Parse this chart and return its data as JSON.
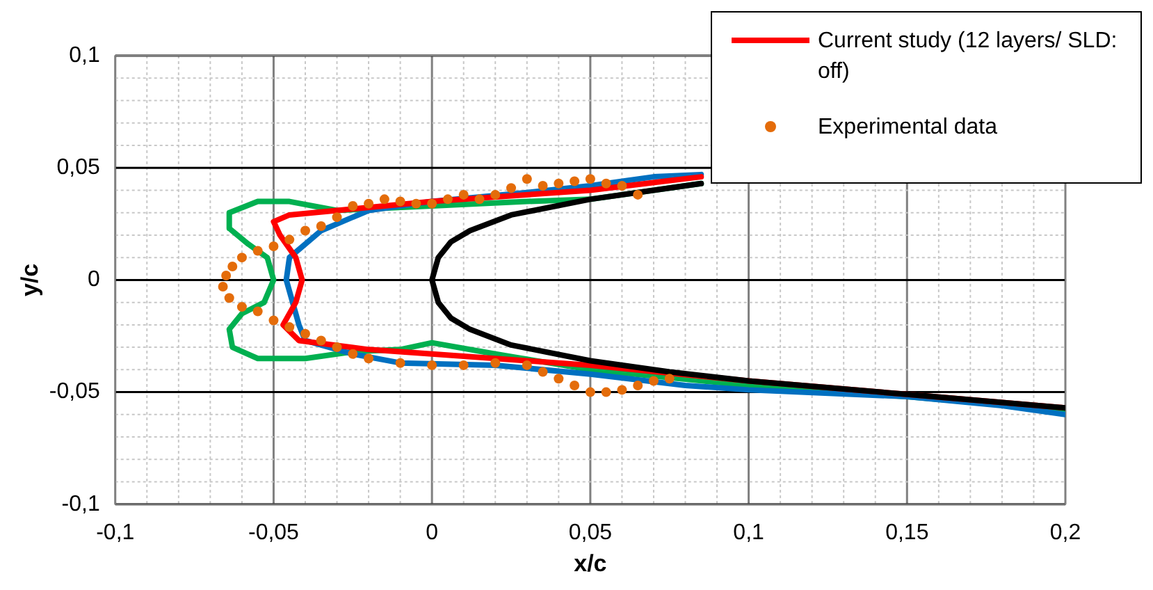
{
  "chart_data": {
    "type": "line",
    "xlabel": "x/c",
    "ylabel": "y/c",
    "legend": "top right",
    "grid": true,
    "xlim": [
      -0.1,
      0.2
    ],
    "ylim": [
      -0.1,
      0.1
    ],
    "xticks": [
      {
        "value": -0.1,
        "label": "-0,1"
      },
      {
        "value": -0.09,
        "label": null
      },
      {
        "value": -0.08,
        "label": null
      },
      {
        "value": -0.07,
        "label": null
      },
      {
        "value": -0.06,
        "label": null
      },
      {
        "value": -0.05,
        "label": "-0,05"
      },
      {
        "value": -0.04,
        "label": null
      },
      {
        "value": -0.03,
        "label": null
      },
      {
        "value": -0.02,
        "label": null
      },
      {
        "value": -0.01,
        "label": null
      },
      0,
      {
        "value": 0.01,
        "label": null
      },
      {
        "value": 0.02,
        "label": null
      },
      {
        "value": 0.03,
        "label": null
      },
      {
        "value": 0.04,
        "label": null
      },
      {
        "value": 0.05,
        "label": "0,05"
      },
      {
        "value": 0.06,
        "label": null
      },
      {
        "value": 0.07,
        "label": null
      },
      {
        "value": 0.08,
        "label": null
      },
      {
        "value": 0.09,
        "label": null
      },
      {
        "value": 0.1,
        "label": "0,1"
      },
      {
        "value": 0.11,
        "label": null
      },
      {
        "value": 0.12,
        "label": null
      },
      {
        "value": 0.13,
        "label": null
      },
      {
        "value": 0.14,
        "label": null
      },
      {
        "value": 0.15,
        "label": "0,15"
      },
      {
        "value": 0.16,
        "label": null
      },
      {
        "value": 0.17,
        "label": null
      },
      {
        "value": 0.18,
        "label": null
      },
      {
        "value": 0.19,
        "label": null
      },
      {
        "value": 0.2,
        "label": "0,2"
      }
    ],
    "yticks": [
      {
        "value": -0.1,
        "label": "-0,1"
      },
      {
        "value": -0.09,
        "label": null
      },
      {
        "value": -0.08,
        "label": null
      },
      {
        "value": -0.07,
        "label": null
      },
      {
        "value": -0.06,
        "label": null
      },
      {
        "value": -0.05,
        "label": "-0,05"
      },
      {
        "value": -0.04,
        "label": null
      },
      {
        "value": -0.03,
        "label": null
      },
      {
        "value": -0.02,
        "label": null
      },
      {
        "value": -0.01,
        "label": null
      },
      0,
      {
        "value": 0.01,
        "label": null
      },
      {
        "value": 0.02,
        "label": null
      },
      {
        "value": 0.03,
        "label": null
      },
      {
        "value": 0.04,
        "label": null
      },
      {
        "value": 0.05,
        "label": "0,05"
      },
      {
        "value": 0.06,
        "label": null
      },
      {
        "value": 0.07,
        "label": null
      },
      {
        "value": 0.08,
        "label": null
      },
      {
        "value": 0.09,
        "label": null
      },
      {
        "value": 0.1,
        "label": "0,1"
      }
    ],
    "series": [
      {
        "color": "#000000",
        "x": [
          0.085,
          0.075,
          0.05,
          0.025,
          0.012,
          0.006,
          0.002,
          0,
          0.002,
          0.006,
          0.012,
          0.025,
          0.05,
          0.075,
          0.1,
          0.15,
          0.2
        ],
        "values": [
          0.043,
          0.041,
          0.036,
          0.029,
          0.022,
          0.017,
          0.01,
          0,
          -0.01,
          -0.017,
          -0.022,
          -0.029,
          -0.036,
          -0.041,
          -0.045,
          -0.051,
          -0.057
        ]
      },
      {
        "name": "Current study (12 layers/ SLD: off)",
        "color": "#ff0000",
        "x": [
          0.085,
          0.05,
          0,
          -0.03,
          -0.045,
          -0.05,
          -0.048,
          -0.043,
          -0.041,
          -0.043,
          -0.047,
          -0.042,
          -0.02,
          0,
          0.05,
          0.1,
          0.15,
          0.2
        ],
        "values": [
          0.046,
          0.04,
          0.035,
          0.031,
          0.029,
          0.026,
          0.02,
          0.01,
          0,
          -0.01,
          -0.02,
          -0.027,
          -0.031,
          -0.033,
          -0.038,
          -0.045,
          -0.051,
          -0.057
        ]
      },
      {
        "color": "#0070c0",
        "x": [
          0.085,
          0.07,
          0.05,
          0.03,
          0,
          -0.02,
          -0.035,
          -0.045,
          -0.046,
          -0.044,
          -0.042,
          -0.04,
          -0.025,
          -0.01,
          0.02,
          0.05,
          0.08,
          0.1,
          0.15,
          0.18,
          0.2
        ],
        "values": [
          0.047,
          0.046,
          0.042,
          0.039,
          0.035,
          0.031,
          0.022,
          0.01,
          0,
          -0.01,
          -0.02,
          -0.027,
          -0.033,
          -0.037,
          -0.038,
          -0.042,
          -0.047,
          -0.049,
          -0.052,
          -0.056,
          -0.06
        ]
      },
      {
        "color": "#00b050",
        "x": [
          0.085,
          0.05,
          0.03,
          0,
          -0.03,
          -0.045,
          -0.055,
          -0.064,
          -0.064,
          -0.058,
          -0.052,
          -0.05,
          -0.053,
          -0.06,
          -0.064,
          -0.063,
          -0.055,
          -0.04,
          -0.025,
          -0.01,
          0,
          0.02,
          0.05,
          0.1,
          0.15,
          0.2
        ],
        "values": [
          0.043,
          0.036,
          0.035,
          0.033,
          0.031,
          0.035,
          0.035,
          0.03,
          0.023,
          0.016,
          0.01,
          0,
          -0.01,
          -0.015,
          -0.022,
          -0.03,
          -0.035,
          -0.035,
          -0.032,
          -0.031,
          -0.028,
          -0.033,
          -0.04,
          -0.047,
          -0.052,
          -0.058
        ]
      },
      {
        "name": "Experimental data",
        "type": "scatter",
        "marker": "circle",
        "color": "#e46c0a",
        "x": [
          0.065,
          0.06,
          0.055,
          0.05,
          0.045,
          0.04,
          0.035,
          0.03,
          0.025,
          0.02,
          0.015,
          0.01,
          0.005,
          0,
          -0.005,
          -0.01,
          -0.015,
          -0.02,
          -0.025,
          -0.03,
          -0.035,
          -0.04,
          -0.045,
          -0.05,
          -0.055,
          -0.06,
          -0.063,
          -0.065,
          -0.066,
          -0.064,
          -0.06,
          -0.055,
          -0.05,
          -0.045,
          -0.04,
          -0.035,
          -0.03,
          -0.025,
          -0.02,
          -0.01,
          0,
          0.01,
          0.02,
          0.03,
          0.035,
          0.04,
          0.045,
          0.05,
          0.055,
          0.06,
          0.065,
          0.07,
          0.075
        ],
        "values": [
          0.038,
          0.042,
          0.043,
          0.045,
          0.044,
          0.043,
          0.042,
          0.045,
          0.041,
          0.038,
          0.036,
          0.038,
          0.036,
          0.034,
          0.034,
          0.035,
          0.036,
          0.034,
          0.033,
          0.028,
          0.024,
          0.022,
          0.018,
          0.015,
          0.013,
          0.01,
          0.006,
          0.002,
          -0.003,
          -0.008,
          -0.012,
          -0.014,
          -0.018,
          -0.021,
          -0.024,
          -0.027,
          -0.03,
          -0.033,
          -0.035,
          -0.037,
          -0.038,
          -0.038,
          -0.037,
          -0.038,
          -0.041,
          -0.044,
          -0.047,
          -0.05,
          -0.05,
          -0.049,
          -0.047,
          -0.045,
          -0.044
        ]
      }
    ]
  }
}
